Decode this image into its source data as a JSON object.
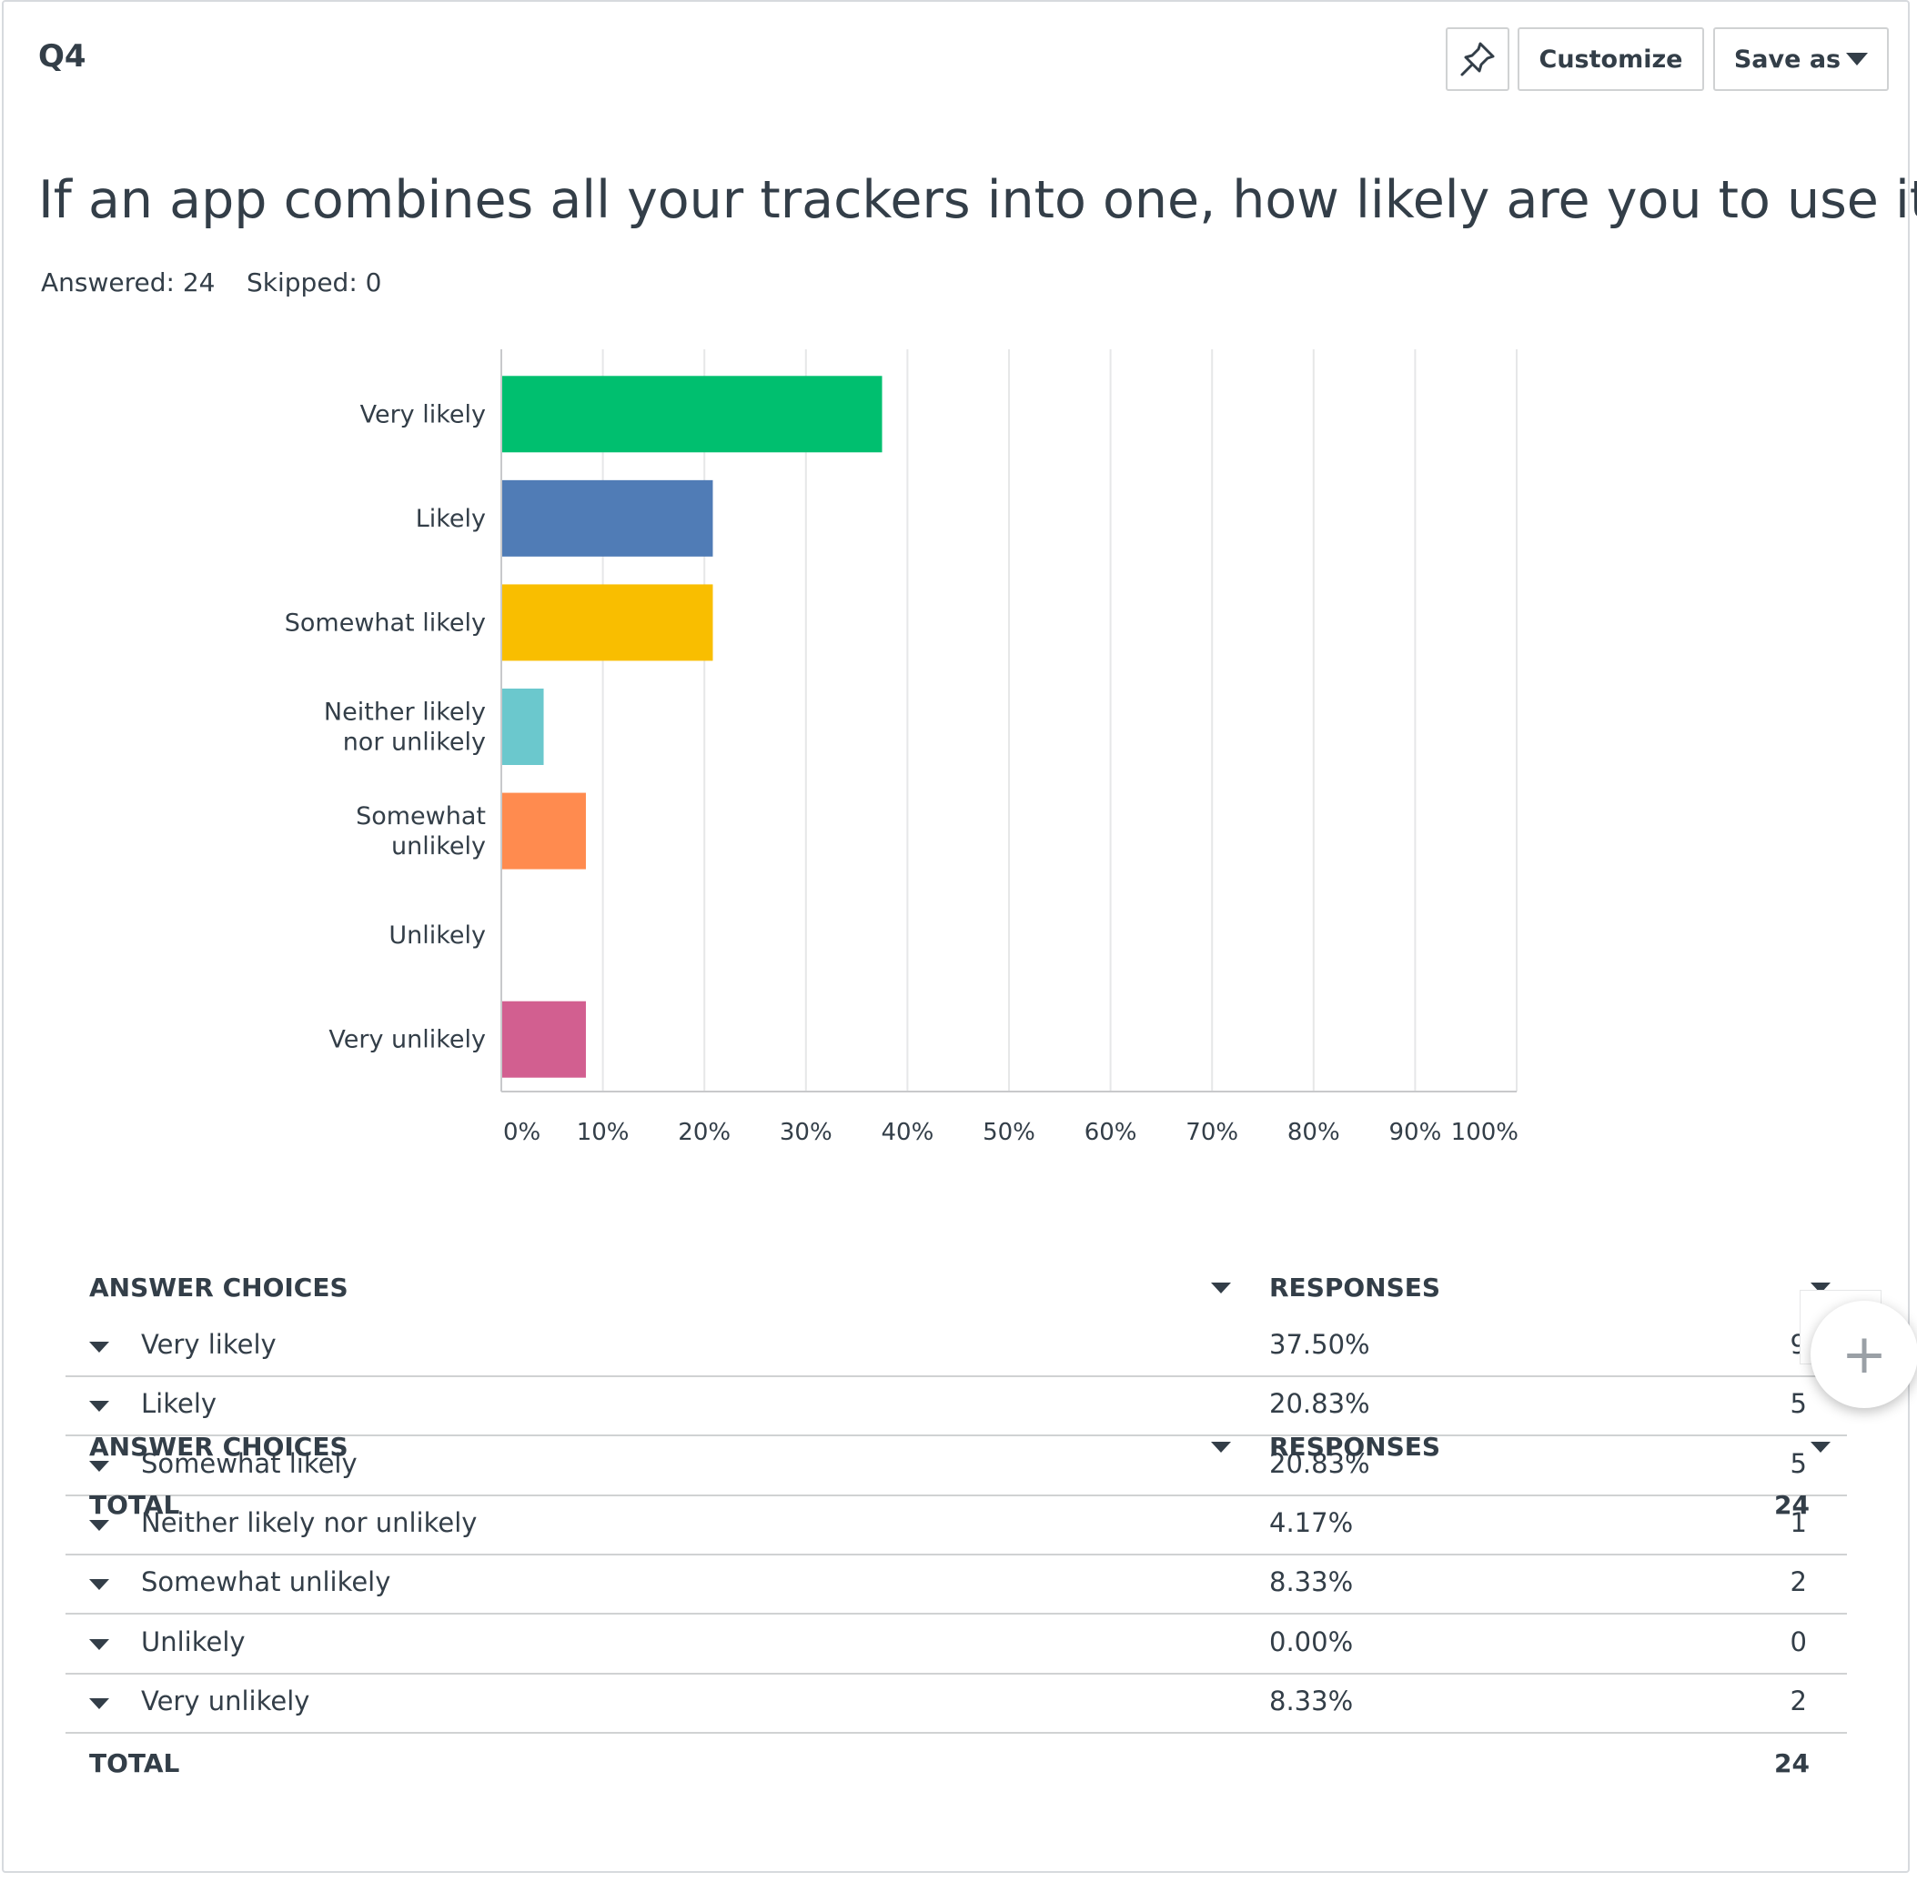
{
  "question": {
    "number": "Q4",
    "title": "If an app combines all your trackers into one, how likely are you to use it?",
    "answered": "Answered: 24",
    "skipped": "Skipped: 0"
  },
  "toolbar": {
    "customize_label": "Customize",
    "saveas_label": "Save as"
  },
  "chart_data": {
    "type": "bar",
    "orientation": "horizontal",
    "categories": [
      [
        "Very likely"
      ],
      [
        "Likely"
      ],
      [
        "Somewhat likely"
      ],
      [
        "Neither likely",
        "nor unlikely"
      ],
      [
        "Somewhat",
        "unlikely"
      ],
      [
        "Unlikely"
      ],
      [
        "Very unlikely"
      ]
    ],
    "values": [
      37.5,
      20.83,
      20.83,
      4.17,
      8.33,
      0.0,
      8.33
    ],
    "colors": [
      "#00bf6f",
      "#507cb6",
      "#f9be00",
      "#6bc8cd",
      "#ff8b4f",
      "#7d5ec4",
      "#d25f90"
    ],
    "xlim": [
      0,
      100
    ],
    "xticks": [
      "0%",
      "10%",
      "20%",
      "30%",
      "40%",
      "50%",
      "60%",
      "70%",
      "80%",
      "90%",
      "100%"
    ],
    "grid": true
  },
  "table": {
    "col_choices": "ANSWER CHOICES",
    "col_responses": "RESPONSES",
    "total_label": "TOTAL",
    "total_value": "24",
    "rows": [
      {
        "label": "Very likely",
        "pct": "37.50%",
        "count": "9"
      },
      {
        "label": "Likely",
        "pct": "20.83%",
        "count": "5"
      },
      {
        "label": "Somewhat likely",
        "pct": "20.83%",
        "count": "5"
      },
      {
        "label": "Neither likely nor unlikely",
        "pct": "4.17%",
        "count": "1"
      },
      {
        "label": "Somewhat unlikely",
        "pct": "8.33%",
        "count": "2"
      },
      {
        "label": "Unlikely",
        "pct": "0.00%",
        "count": "0"
      },
      {
        "label": "Very unlikely",
        "pct": "8.33%",
        "count": "2"
      }
    ]
  },
  "icons": {
    "pin": "pin-icon",
    "add": "plus-icon"
  }
}
